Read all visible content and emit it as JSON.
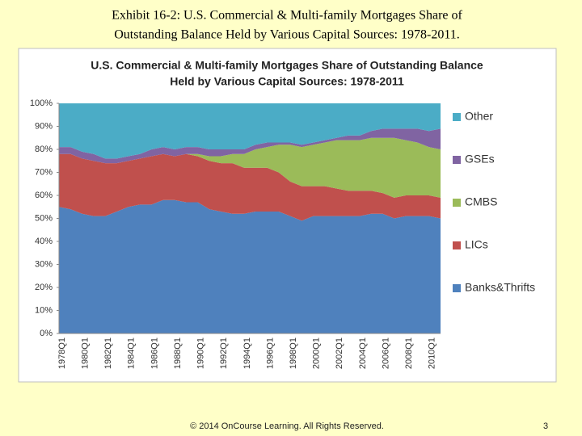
{
  "header": {
    "title": [
      "Exhibit 16-2: U.S. Commercial & Multi-family Mortgages Share of",
      "Outstanding Balance Held by Various Capital Sources: 1978-2011."
    ]
  },
  "chart_data": {
    "type": "stacked_area",
    "title": [
      "U.S. Commercial & Multi-family Mortgages Share of Outstanding Balance",
      "Held by Various Capital Sources: 1978-2011"
    ],
    "categories": [
      "1978Q1",
      null,
      "1980Q1",
      null,
      "1982Q1",
      null,
      "1984Q1",
      null,
      "1986Q1",
      null,
      "1988Q1",
      null,
      "1990Q1",
      null,
      "1992Q1",
      null,
      "1994Q1",
      null,
      "1996Q1",
      null,
      "1998Q1",
      null,
      "2000Q1",
      null,
      "2002Q1",
      null,
      "2004Q1",
      null,
      "2006Q1",
      null,
      "2008Q1",
      null,
      "2010Q1",
      null
    ],
    "series": [
      {
        "name": "Banks&Thrifts",
        "color": "#4f81bd",
        "values": [
          55,
          54,
          52,
          51,
          51,
          53,
          55,
          56,
          56,
          58,
          58,
          57,
          57,
          54,
          53,
          52,
          52,
          53,
          53,
          53,
          51,
          49,
          51,
          51,
          51,
          51,
          51,
          52,
          52,
          50,
          51,
          51,
          51,
          50
        ]
      },
      {
        "name": "LICs",
        "color": "#c0504d",
        "values": [
          23,
          24,
          24,
          24,
          23,
          21,
          20,
          20,
          21,
          20,
          19,
          21,
          20,
          21,
          21,
          22,
          20,
          19,
          19,
          17,
          15,
          15,
          13,
          13,
          12,
          11,
          11,
          10,
          9,
          9,
          9,
          9,
          9,
          9
        ]
      },
      {
        "name": "CMBS",
        "color": "#9bbb59",
        "values": [
          0,
          0,
          0,
          0,
          0,
          0,
          0,
          0,
          0,
          0,
          0,
          0,
          1,
          2,
          3,
          4,
          6,
          8,
          9,
          12,
          16,
          17,
          18,
          19,
          21,
          22,
          22,
          23,
          24,
          26,
          24,
          23,
          21,
          21
        ]
      },
      {
        "name": "GSEs",
        "color": "#8064a2",
        "values": [
          3,
          3,
          3,
          3,
          2,
          2,
          2,
          2,
          3,
          3,
          3,
          3,
          3,
          3,
          3,
          2,
          2,
          2,
          2,
          1,
          1,
          1,
          1,
          1,
          1,
          2,
          2,
          3,
          4,
          4,
          5,
          6,
          7,
          9
        ]
      },
      {
        "name": "Other",
        "color": "#4bacc6",
        "values": [
          19,
          19,
          21,
          22,
          24,
          24,
          23,
          22,
          20,
          19,
          20,
          19,
          19,
          20,
          20,
          20,
          20,
          18,
          17,
          17,
          17,
          18,
          17,
          16,
          15,
          14,
          14,
          12,
          11,
          11,
          11,
          11,
          12,
          11
        ]
      }
    ],
    "ylim": [
      0,
      100
    ],
    "yticks": [
      {
        "value": 0,
        "label": "0%"
      },
      {
        "value": 10,
        "label": "10%"
      },
      {
        "value": 20,
        "label": "20%"
      },
      {
        "value": 30,
        "label": "30%"
      },
      {
        "value": 40,
        "label": "40%"
      },
      {
        "value": 50,
        "label": "50%"
      },
      {
        "value": 60,
        "label": "60%"
      },
      {
        "value": 70,
        "label": "70%"
      },
      {
        "value": 80,
        "label": "80%"
      },
      {
        "value": 90,
        "label": "90%"
      },
      {
        "value": 100,
        "label": "100%"
      }
    ],
    "legend": "right"
  },
  "footer": {
    "copyright": "© 2014 OnCourse Learning. All Rights Reserved.",
    "page": "3"
  }
}
